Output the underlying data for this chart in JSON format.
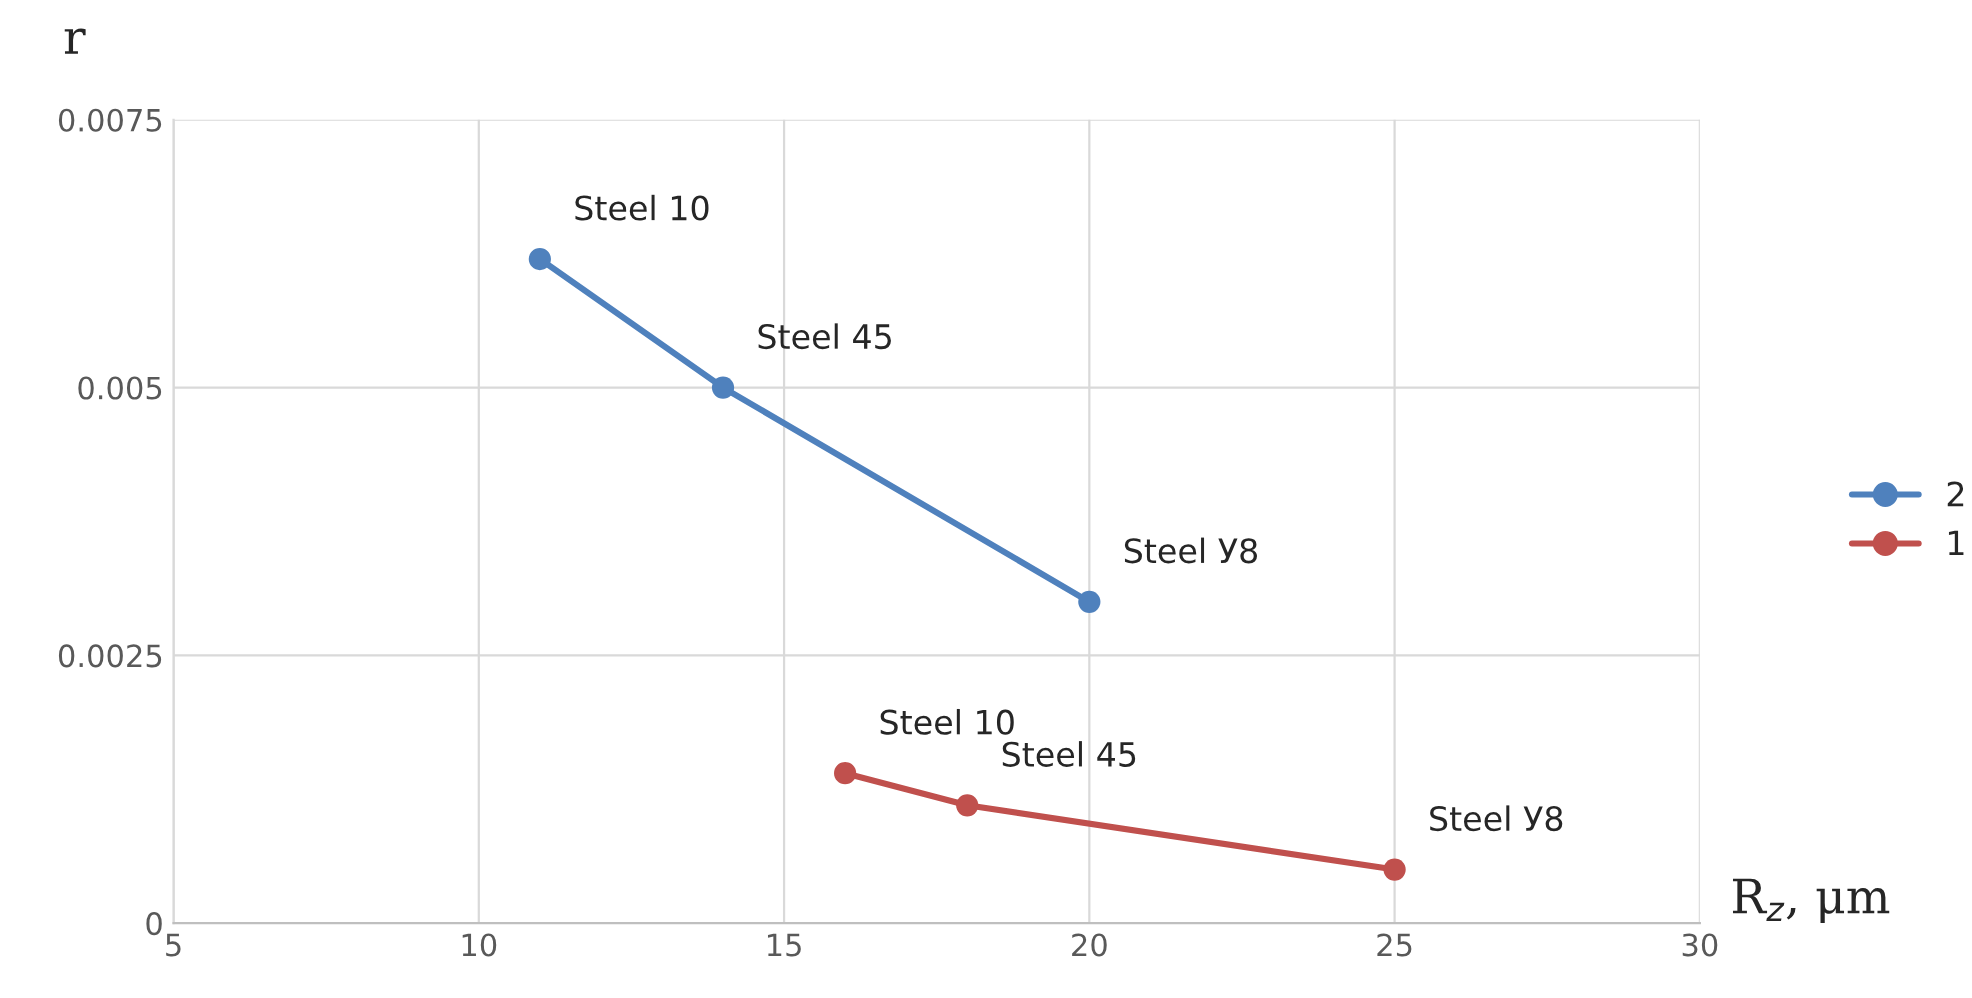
{
  "chart_data": {
    "type": "line",
    "xlabel": "R$_{z}$, μm",
    "ylabel": "r",
    "xlim": [
      5,
      30
    ],
    "xticks": [
      5,
      10,
      15,
      20,
      25,
      30
    ],
    "ylim": [
      0,
      0.0075
    ],
    "yticks": [
      0,
      0.0025,
      0.005,
      0.0075
    ],
    "grid": true,
    "legend": "right",
    "marker": "circle",
    "line_style": "solid",
    "series": [
      {
        "name": "2",
        "color": "#4f81bd",
        "x": [
          11,
          14,
          20
        ],
        "values": [
          0.0062,
          0.005,
          0.003
        ]
      },
      {
        "name": "1",
        "color": "#c0504d",
        "x": [
          16,
          18,
          25
        ],
        "values": [
          0.0014,
          0.0011,
          0.0005
        ]
      }
    ],
    "annotations": [
      {
        "text": "Steel 10",
        "x": 11,
        "y": 0.0062
      },
      {
        "text": "Steel 45",
        "x": 14,
        "y": 0.005
      },
      {
        "text": "Steel У8",
        "x": 20,
        "y": 0.003
      },
      {
        "text": "Steel 10",
        "x": 16,
        "y": 0.0014
      },
      {
        "text": "Steel 45",
        "x": 18,
        "y": 0.0011
      },
      {
        "text": "Steel У8",
        "x": 25,
        "y": 0.0005
      }
    ]
  }
}
